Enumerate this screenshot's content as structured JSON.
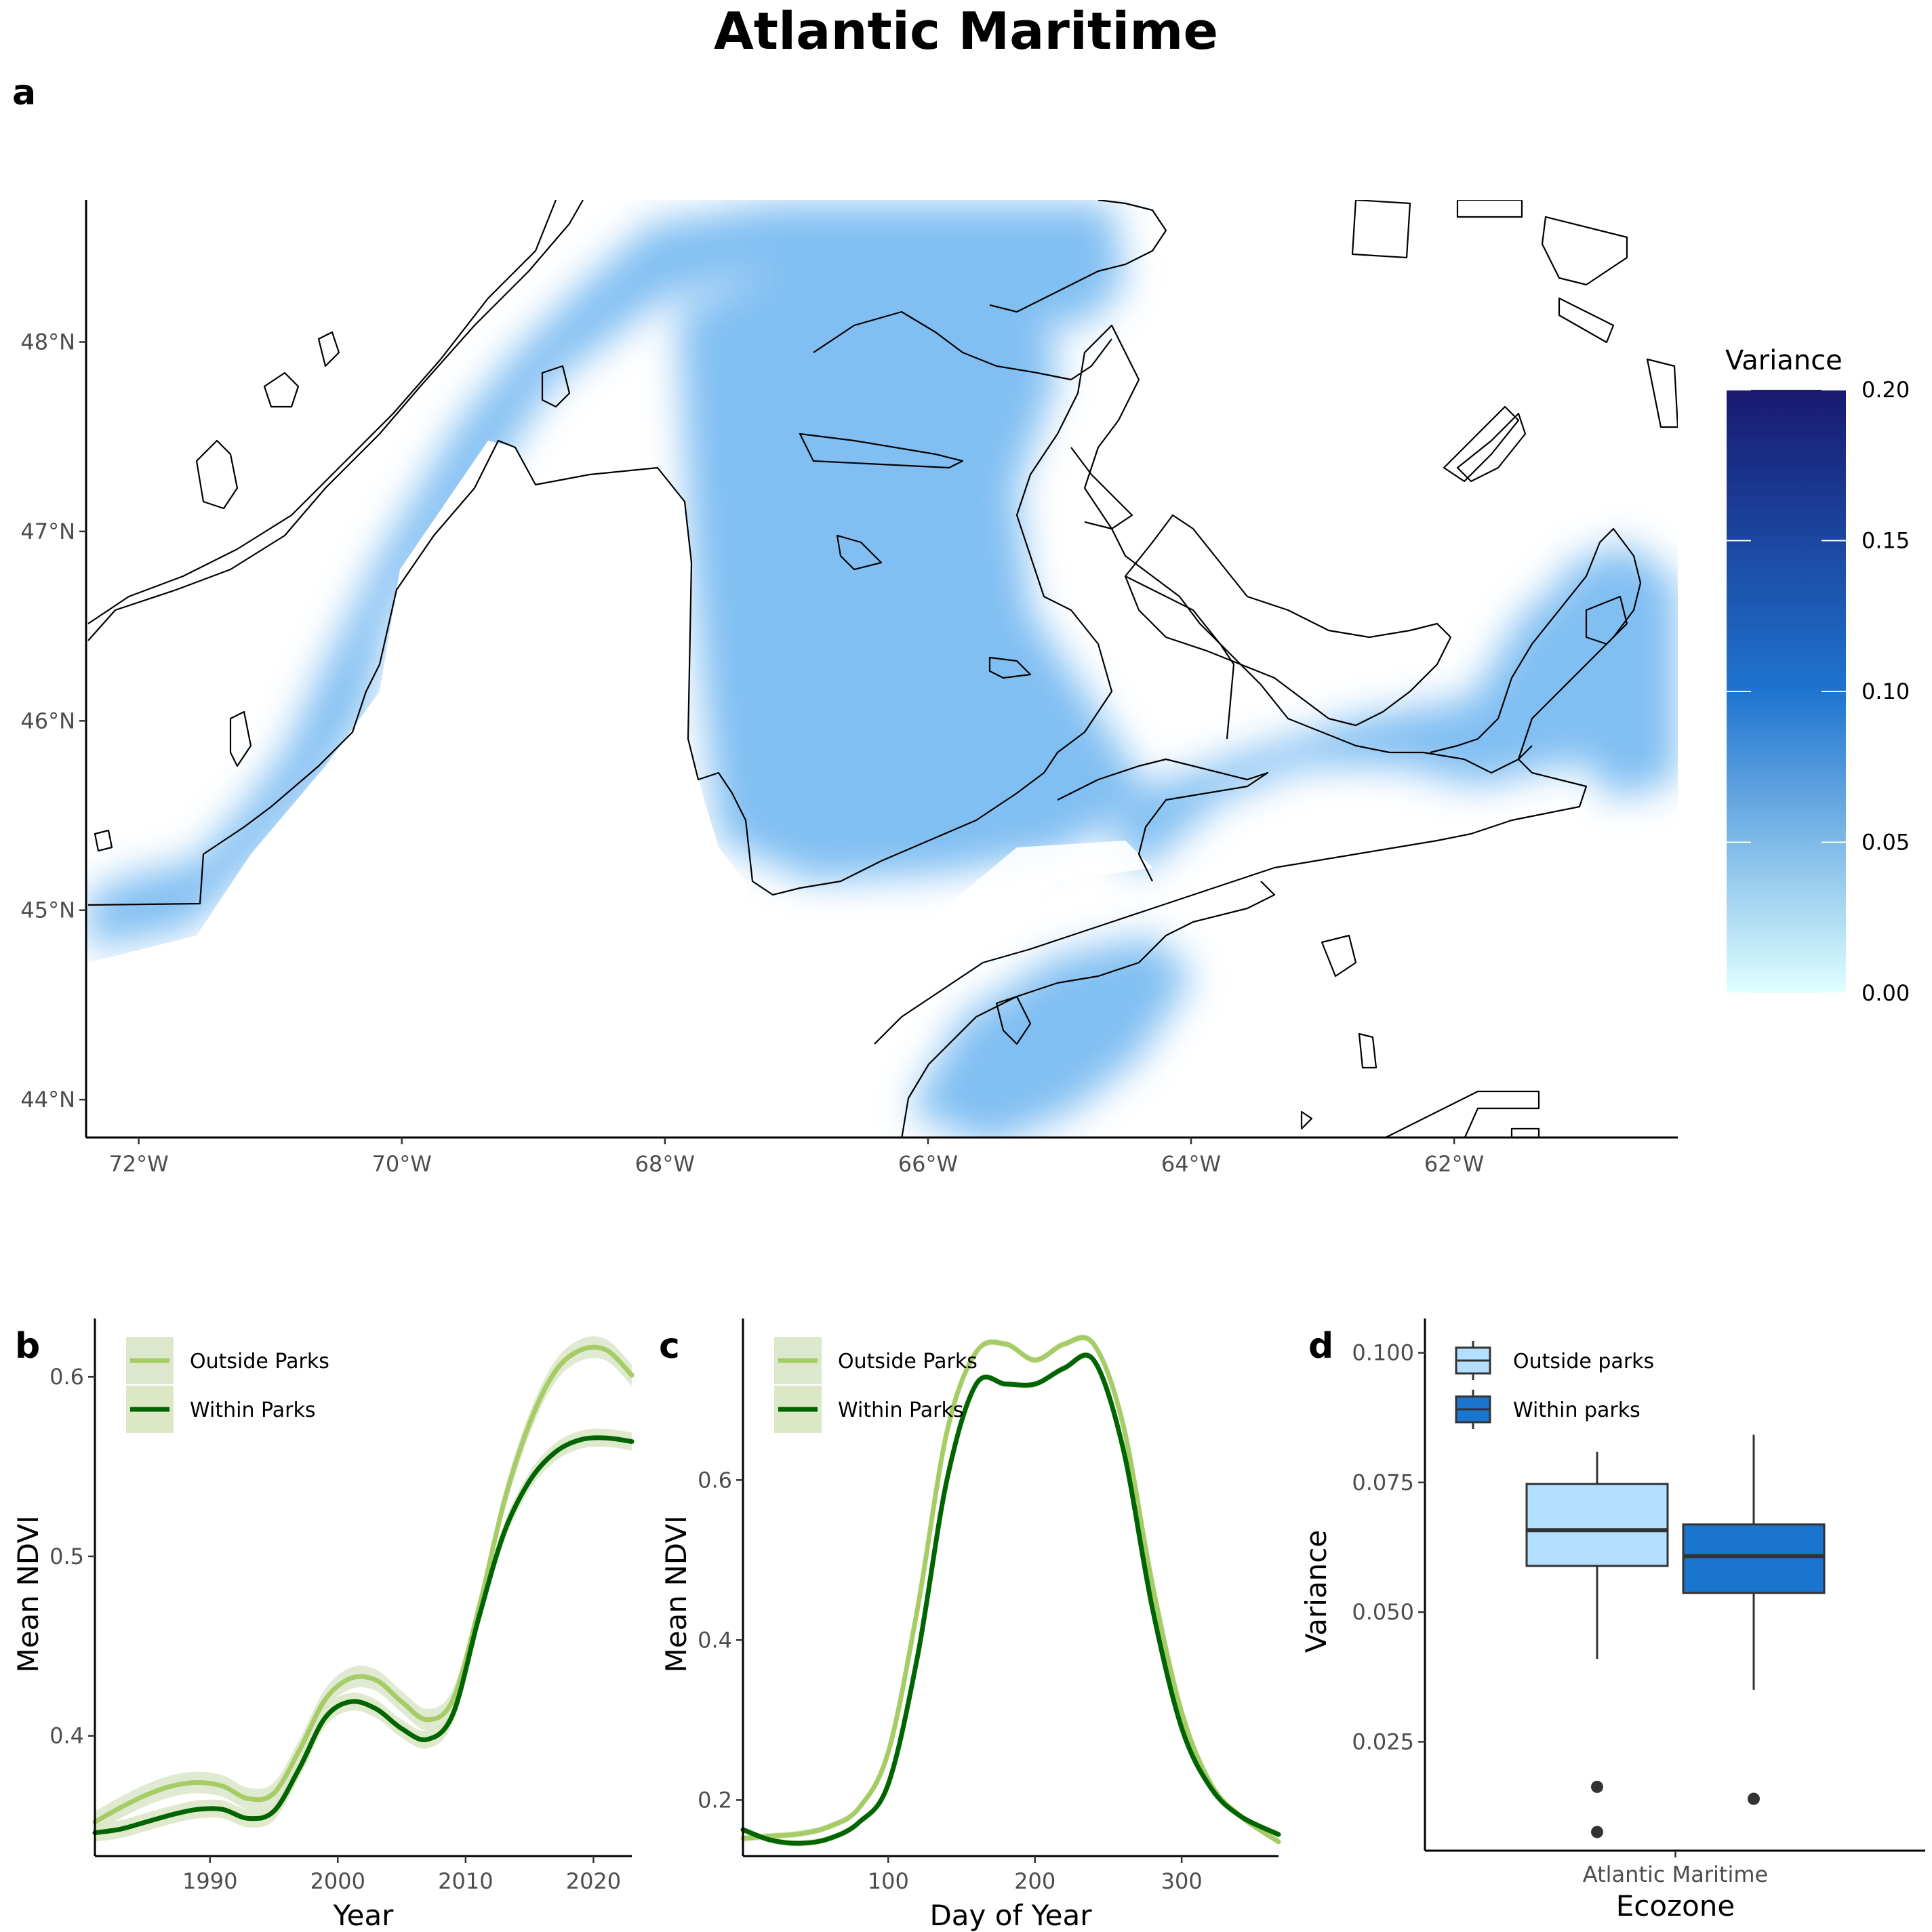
{
  "title": "Atlantic Maritime",
  "colors": {
    "outside_line": "#a6cc66",
    "within_line": "#006400",
    "outside_ribbon": "#dde7cc",
    "within_ribbon": "#dce7c6",
    "box_outside": "#b3e0ff",
    "box_within": "#1a75cf",
    "map_fill": "#6cb4f0",
    "colorbar_low": "#e0ffff",
    "colorbar_mid": "#1e74d0",
    "colorbar_high": "#191970"
  },
  "chart_data": [
    {
      "panel": "a",
      "type": "heatmap",
      "description_kind": "map",
      "x_tick_labels": [
        "72°W",
        "70°W",
        "68°W",
        "66°W",
        "64°W",
        "62°W"
      ],
      "x_ticks": [
        -72,
        -70,
        -68,
        -66,
        -64,
        -62
      ],
      "xlim": [
        -72.4,
        -60.3
      ],
      "y_tick_labels": [
        "48°N",
        "47°N",
        "46°N",
        "45°N",
        "44°N"
      ],
      "y_ticks": [
        48,
        47,
        46,
        45,
        44
      ],
      "ylim": [
        43.8,
        48.75
      ],
      "legend": {
        "title": "Variance",
        "ticks": [
          "0.00",
          "0.05",
          "0.10",
          "0.15",
          "0.20"
        ],
        "tick_values": [
          0,
          0.05,
          0.1,
          0.15,
          0.2
        ],
        "range": [
          0,
          0.2
        ],
        "placement": "right"
      }
    },
    {
      "panel": "b",
      "type": "line",
      "xlabel": "Year",
      "ylabel": "Mean NDVI",
      "xlim": [
        1981,
        2023
      ],
      "ylim": [
        0.333,
        0.625
      ],
      "x_ticks": [
        1990,
        2000,
        2010,
        2020
      ],
      "y_ticks": [
        0.4,
        0.5,
        0.6
      ],
      "legend_placement": "top-left",
      "series": [
        {
          "name": "Outside Parks",
          "x": [
            1981,
            1983,
            1985,
            1987,
            1989,
            1991,
            1993,
            1995,
            1997,
            1999,
            2001,
            2003,
            2005,
            2007,
            2009,
            2011,
            2013,
            2015,
            2017,
            2019,
            2021,
            2023
          ],
          "y": [
            0.352,
            0.36,
            0.367,
            0.372,
            0.374,
            0.372,
            0.365,
            0.368,
            0.392,
            0.42,
            0.432,
            0.431,
            0.419,
            0.409,
            0.42,
            0.47,
            0.53,
            0.574,
            0.603,
            0.615,
            0.615,
            0.601
          ],
          "band": 0.006
        },
        {
          "name": "Within Parks",
          "x": [
            1981,
            1983,
            1985,
            1987,
            1989,
            1991,
            1993,
            1995,
            1997,
            1999,
            2001,
            2003,
            2005,
            2007,
            2009,
            2011,
            2013,
            2015,
            2017,
            2019,
            2021,
            2023
          ],
          "y": [
            0.346,
            0.348,
            0.352,
            0.356,
            0.359,
            0.359,
            0.354,
            0.358,
            0.382,
            0.41,
            0.419,
            0.415,
            0.404,
            0.398,
            0.412,
            0.465,
            0.513,
            0.542,
            0.558,
            0.565,
            0.566,
            0.564
          ],
          "band": 0.005
        }
      ]
    },
    {
      "panel": "c",
      "type": "line",
      "xlabel": "Day of Year",
      "ylabel": "Mean NDVI",
      "xlim": [
        1,
        366
      ],
      "ylim": [
        0.13,
        0.785
      ],
      "x_ticks": [
        100,
        200,
        300
      ],
      "y_ticks": [
        0.2,
        0.4,
        0.6
      ],
      "legend_placement": "top-left",
      "series": [
        {
          "name": "Outside Parks",
          "x": [
            1,
            20,
            40,
            60,
            80,
            100,
            120,
            140,
            160,
            180,
            200,
            220,
            240,
            260,
            280,
            300,
            320,
            340,
            366
          ],
          "y": [
            0.152,
            0.155,
            0.158,
            0.167,
            0.19,
            0.26,
            0.44,
            0.66,
            0.76,
            0.77,
            0.75,
            0.77,
            0.77,
            0.67,
            0.47,
            0.31,
            0.22,
            0.18,
            0.148
          ],
          "band": 0.004
        },
        {
          "name": "Within Parks",
          "x": [
            1,
            20,
            40,
            60,
            80,
            100,
            120,
            140,
            160,
            180,
            200,
            220,
            240,
            260,
            280,
            300,
            320,
            340,
            366
          ],
          "y": [
            0.163,
            0.15,
            0.146,
            0.152,
            0.172,
            0.22,
            0.38,
            0.6,
            0.72,
            0.72,
            0.72,
            0.74,
            0.75,
            0.64,
            0.44,
            0.29,
            0.215,
            0.18,
            0.157
          ],
          "band": 0.004
        }
      ]
    },
    {
      "panel": "d",
      "type": "box",
      "xlabel": "Ecozone",
      "ylabel": "Variance",
      "categories": [
        "Atlantic Maritime"
      ],
      "ylim": [
        0.004,
        0.104
      ],
      "y_ticks": [
        0.025,
        0.05,
        0.075,
        0.1
      ],
      "y_tick_labels": [
        "0.025",
        "0.050",
        "0.075",
        "0.100"
      ],
      "legend_placement": "top-left",
      "series": [
        {
          "name": "Outside parks",
          "min": 0.041,
          "q1": 0.0589,
          "median": 0.0658,
          "q3": 0.0747,
          "max": 0.0809,
          "outliers": [
            0.0163,
            0.0076
          ]
        },
        {
          "name": "Within parks",
          "min": 0.035,
          "q1": 0.0537,
          "median": 0.0608,
          "q3": 0.0669,
          "max": 0.0842,
          "outliers": [
            0.014
          ]
        }
      ]
    }
  ]
}
